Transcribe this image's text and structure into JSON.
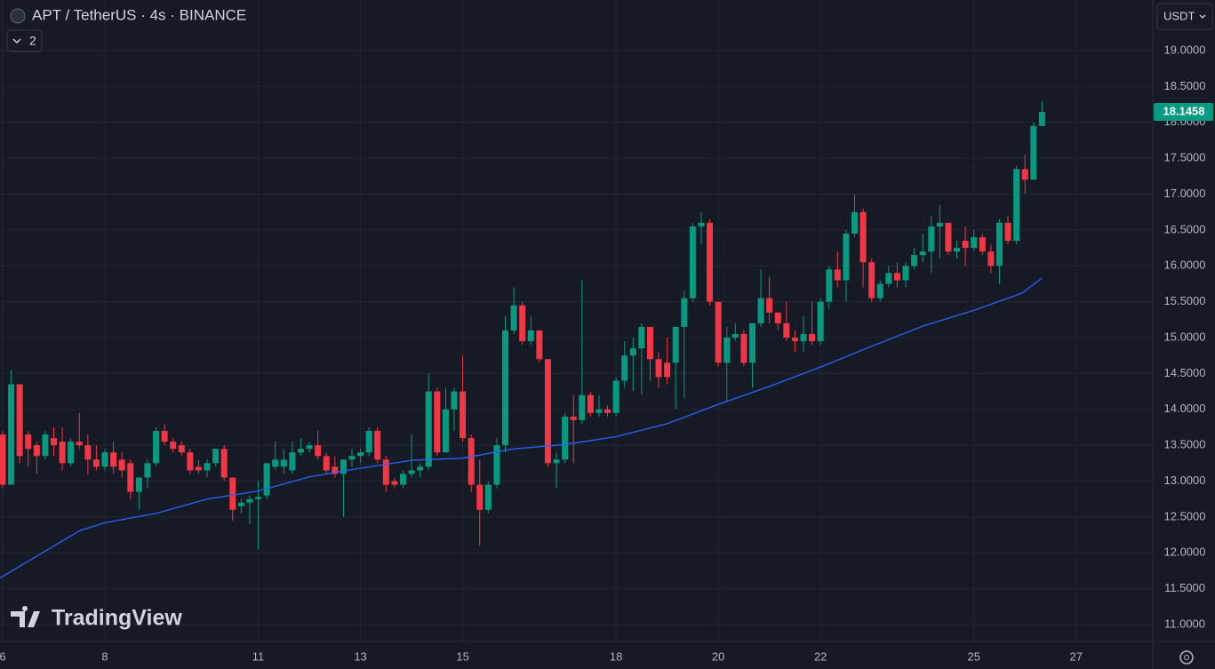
{
  "chart_data": {
    "type": "candlestick",
    "title": "APT / TetherUS · 4s · BINANCE",
    "indicator_count": 2,
    "currency": "USDT",
    "watermark": "TradingView",
    "last_price": 18.1458,
    "up_color": "#089981",
    "down_color": "#f23645",
    "grid": true,
    "xlim": [
      5.948,
      28.5
    ],
    "xticks": [
      6,
      8,
      11,
      13,
      15,
      18,
      20,
      22,
      25,
      27
    ],
    "ylim": [
      10.765,
      19.706
    ],
    "yticks": [
      {
        "value": 11,
        "label": "11.0000"
      },
      {
        "value": 11.5,
        "label": "11.5000"
      },
      {
        "value": 12,
        "label": "12.0000"
      },
      {
        "value": 12.5,
        "label": "12.5000"
      },
      {
        "value": 13,
        "label": "13.0000"
      },
      {
        "value": 13.5,
        "label": "13.5000"
      },
      {
        "value": 14,
        "label": "14.0000"
      },
      {
        "value": 14.5,
        "label": "14.5000"
      },
      {
        "value": 15,
        "label": "15.0000"
      },
      {
        "value": 15.5,
        "label": "15.5000"
      },
      {
        "value": 16,
        "label": "16.0000"
      },
      {
        "value": 16.5,
        "label": "16.5000"
      },
      {
        "value": 17,
        "label": "17.0000"
      },
      {
        "value": 17.5,
        "label": "17.5000"
      },
      {
        "value": 18,
        "label": "18.0000"
      },
      {
        "value": 18.5,
        "label": "18.5000"
      },
      {
        "value": 19,
        "label": "19.0000"
      }
    ],
    "x": [
      6,
      6.167,
      6.333,
      6.5,
      6.667,
      6.833,
      7,
      7.167,
      7.333,
      7.5,
      7.667,
      7.833,
      8,
      8.167,
      8.333,
      8.5,
      8.667,
      8.833,
      9,
      9.167,
      9.333,
      9.5,
      9.667,
      9.833,
      10,
      10.167,
      10.333,
      10.5,
      10.667,
      10.833,
      11,
      11.167,
      11.333,
      11.5,
      11.667,
      11.833,
      12,
      12.167,
      12.333,
      12.5,
      12.667,
      12.833,
      13,
      13.167,
      13.333,
      13.5,
      13.667,
      13.833,
      14,
      14.167,
      14.333,
      14.5,
      14.667,
      14.833,
      15,
      15.167,
      15.333,
      15.5,
      15.667,
      15.833,
      16,
      16.167,
      16.333,
      16.5,
      16.667,
      16.833,
      17,
      17.167,
      17.333,
      17.5,
      17.667,
      17.833,
      18,
      18.167,
      18.333,
      18.5,
      18.667,
      18.833,
      19,
      19.167,
      19.333,
      19.5,
      19.667,
      19.833,
      20,
      20.167,
      20.333,
      20.5,
      20.667,
      20.833,
      21,
      21.167,
      21.333,
      21.5,
      21.667,
      21.833,
      22,
      22.167,
      22.333,
      22.5,
      22.667,
      22.833,
      23,
      23.167,
      23.333,
      23.5,
      23.667,
      23.833,
      24,
      24.167,
      24.333,
      24.5,
      24.667,
      24.833,
      25,
      25.167,
      25.333,
      25.5,
      25.667,
      25.833,
      26,
      26.167,
      26.333
    ],
    "open": [
      13.65,
      12.95,
      14.35,
      13.65,
      13.5,
      13.35,
      13.6,
      13.55,
      13.25,
      13.55,
      13.5,
      13.3,
      13.2,
      13.4,
      13.3,
      13.25,
      12.85,
      13.05,
      13.25,
      13.7,
      13.55,
      13.5,
      13.4,
      13.2,
      13.15,
      13.25,
      13.45,
      13.05,
      12.65,
      12.7,
      12.75,
      12.8,
      13.2,
      13.2,
      13.15,
      13.4,
      13.45,
      13.5,
      13.35,
      13.2,
      13.1,
      13.3,
      13.35,
      13.4,
      13.7,
      13.3,
      13.0,
      12.95,
      13.1,
      13.15,
      13.2,
      14.25,
      13.4,
      14.0,
      14.25,
      13.6,
      12.95,
      12.6,
      12.95,
      13.5,
      15.1,
      15.45,
      14.95,
      15.1,
      14.7,
      13.25,
      13.3,
      13.9,
      13.85,
      14.2,
      13.95,
      14.0,
      13.95,
      14.4,
      14.75,
      14.85,
      15.15,
      14.7,
      14.65,
      14.65,
      15.15,
      15.55,
      16.55,
      16.6,
      15.5,
      14.65,
      15.0,
      15.05,
      14.65,
      15.2,
      15.55,
      15.35,
      15.2,
      15.0,
      14.95,
      15.05,
      14.95,
      15.5,
      15.95,
      15.8,
      16.45,
      16.75,
      16.05,
      15.55,
      15.75,
      15.9,
      15.8,
      16.0,
      16.15,
      16.2,
      16.55,
      16.6,
      16.2,
      16.35,
      16.25,
      16.4,
      16.2,
      16.0,
      16.6,
      16.35,
      17.35,
      17.2,
      17.95
    ],
    "high": [
      13.7,
      14.55,
      14.35,
      13.7,
      13.55,
      13.7,
      13.75,
      13.75,
      13.6,
      13.95,
      13.65,
      13.5,
      13.45,
      13.55,
      13.4,
      13.3,
      13.05,
      13.3,
      13.75,
      13.8,
      13.6,
      13.55,
      13.45,
      13.3,
      13.3,
      13.45,
      13.5,
      13.05,
      12.75,
      12.8,
      13.0,
      13.25,
      13.55,
      13.45,
      13.55,
      13.6,
      13.55,
      13.7,
      13.4,
      13.35,
      13.3,
      13.45,
      13.45,
      13.75,
      13.75,
      13.35,
      13.05,
      13.15,
      13.65,
      13.25,
      14.5,
      14.3,
      14.3,
      14.3,
      14.75,
      13.65,
      13.3,
      13.0,
      13.6,
      15.3,
      15.7,
      15.5,
      15.3,
      15.1,
      14.7,
      13.4,
      13.95,
      14.2,
      15.8,
      14.25,
      14.2,
      14.05,
      14.45,
      14.95,
      15.0,
      15.2,
      15.15,
      14.8,
      15.0,
      15.15,
      15.65,
      16.6,
      16.75,
      16.65,
      15.5,
      15.15,
      15.2,
      15.1,
      15.2,
      15.95,
      15.85,
      15.35,
      15.5,
      15.1,
      15.3,
      15.5,
      15.55,
      16.0,
      16.2,
      16.5,
      17.0,
      16.8,
      16.1,
      15.8,
      16.0,
      16.05,
      16.05,
      16.25,
      16.45,
      16.7,
      16.85,
      16.6,
      16.35,
      16.55,
      16.5,
      16.45,
      16.3,
      16.65,
      16.7,
      17.4,
      17.55,
      18.0,
      18.3
    ],
    "low": [
      12.9,
      12.95,
      13.25,
      13.2,
      13.1,
      13.3,
      13.35,
      13.15,
      13.2,
      13.45,
      13.1,
      13.15,
      13.15,
      13.1,
      13.05,
      12.75,
      12.6,
      12.9,
      13.2,
      13.5,
      13.4,
      13.35,
      13.1,
      13.1,
      13.05,
      13.2,
      13.0,
      12.45,
      12.55,
      12.4,
      12.05,
      12.75,
      13.15,
      13.1,
      13.1,
      13.35,
      13.4,
      13.3,
      13.1,
      13.05,
      12.5,
      13.2,
      13.25,
      13.35,
      13.25,
      12.85,
      12.9,
      12.9,
      13.05,
      13.05,
      13.15,
      13.35,
      13.4,
      13.7,
      13.55,
      12.85,
      12.1,
      12.55,
      12.9,
      13.4,
      15.05,
      14.9,
      14.9,
      14.65,
      13.2,
      12.9,
      13.25,
      13.25,
      13.8,
      13.9,
      13.9,
      13.9,
      13.9,
      14.3,
      14.25,
      14.2,
      14.4,
      14.3,
      14.35,
      14.0,
      14.15,
      15.5,
      16.3,
      15.45,
      14.6,
      14.1,
      14.95,
      14.6,
      14.3,
      15.15,
      15.2,
      15.1,
      14.95,
      14.8,
      14.8,
      14.9,
      14.9,
      15.4,
      15.7,
      15.5,
      16.4,
      15.7,
      15.5,
      15.5,
      15.7,
      15.7,
      15.7,
      15.95,
      16.05,
      15.9,
      16.1,
      16.15,
      16.1,
      16.0,
      16.2,
      16.15,
      15.9,
      15.75,
      16.3,
      16.3,
      17.0,
      17.2,
      17.95
    ],
    "close": [
      12.95,
      14.35,
      13.35,
      13.45,
      13.35,
      13.65,
      13.5,
      13.25,
      13.55,
      13.5,
      13.3,
      13.2,
      13.4,
      13.2,
      13.15,
      12.85,
      13.05,
      13.25,
      13.7,
      13.55,
      13.45,
      13.4,
      13.15,
      13.15,
      13.25,
      13.45,
      13.05,
      12.6,
      12.7,
      12.75,
      12.78,
      13.25,
      13.3,
      13.3,
      13.4,
      13.45,
      13.5,
      13.35,
      13.15,
      13.1,
      13.3,
      13.35,
      13.4,
      13.7,
      13.3,
      12.95,
      12.95,
      13.1,
      13.15,
      13.2,
      14.25,
      13.4,
      14.0,
      14.25,
      13.6,
      12.95,
      12.6,
      12.95,
      13.5,
      15.1,
      15.45,
      14.95,
      15.1,
      14.7,
      13.25,
      13.3,
      13.9,
      13.85,
      14.2,
      13.95,
      14.0,
      13.95,
      14.4,
      14.75,
      14.85,
      15.15,
      14.7,
      14.45,
      14.45,
      15.15,
      15.55,
      16.55,
      16.6,
      15.5,
      14.65,
      15.0,
      15.05,
      14.65,
      15.2,
      15.55,
      15.35,
      15.2,
      15.0,
      14.95,
      15.05,
      14.95,
      15.5,
      15.95,
      15.8,
      16.45,
      16.75,
      16.05,
      15.55,
      15.75,
      15.9,
      15.8,
      16.0,
      16.15,
      16.2,
      16.55,
      16.6,
      16.2,
      16.25,
      16.25,
      16.4,
      16.2,
      16.0,
      16.6,
      16.35,
      17.35,
      17.2,
      17.95,
      18.1458
    ],
    "ma": {
      "color": "#2962ff",
      "x": [
        5.95,
        7.51,
        8,
        9,
        10,
        11,
        12,
        13,
        14,
        15,
        16,
        17,
        18,
        19,
        20,
        21,
        22,
        23,
        24,
        25,
        25.94,
        26.33
      ],
      "values": [
        11.65,
        12.31,
        12.42,
        12.55,
        12.75,
        12.86,
        13.06,
        13.18,
        13.29,
        13.32,
        13.45,
        13.51,
        13.62,
        13.8,
        14.07,
        14.32,
        14.59,
        14.88,
        15.16,
        15.38,
        15.62,
        15.83
      ]
    }
  }
}
